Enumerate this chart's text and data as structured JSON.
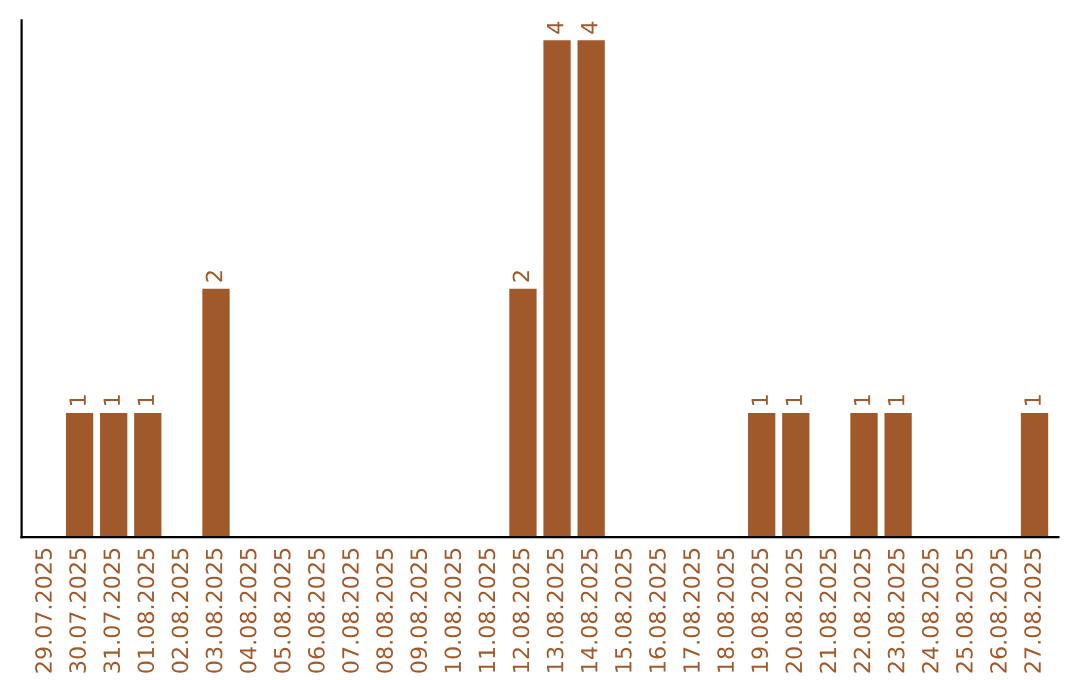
{
  "chart_data": {
    "type": "bar",
    "categories": [
      "29.07.2025",
      "30.07.2025",
      "31.07.2025",
      "01.08.2025",
      "02.08.2025",
      "03.08.2025",
      "04.08.2025",
      "05.08.2025",
      "06.08.2025",
      "07.08.2025",
      "08.08.2025",
      "09.08.2025",
      "10.08.2025",
      "11.08.2025",
      "12.08.2025",
      "13.08.2025",
      "14.08.2025",
      "15.08.2025",
      "16.08.2025",
      "17.08.2025",
      "18.08.2025",
      "19.08.2025",
      "20.08.2025",
      "21.08.2025",
      "22.08.2025",
      "23.08.2025",
      "24.08.2025",
      "25.08.2025",
      "26.08.2025",
      "27.08.2025"
    ],
    "values": [
      0,
      1,
      1,
      1,
      0,
      2,
      0,
      0,
      0,
      0,
      0,
      0,
      0,
      0,
      2,
      4,
      4,
      0,
      0,
      0,
      0,
      1,
      1,
      0,
      1,
      1,
      0,
      0,
      0,
      1
    ],
    "value_labels": [
      null,
      "1",
      "1",
      "1",
      null,
      "2",
      null,
      null,
      null,
      null,
      null,
      null,
      null,
      null,
      "2",
      "4",
      "4",
      null,
      null,
      null,
      null,
      "1",
      "1",
      null,
      "1",
      "1",
      null,
      null,
      null,
      "1"
    ],
    "color": "#a0592a",
    "tick_labels": "x",
    "grid": false,
    "legend": false
  }
}
